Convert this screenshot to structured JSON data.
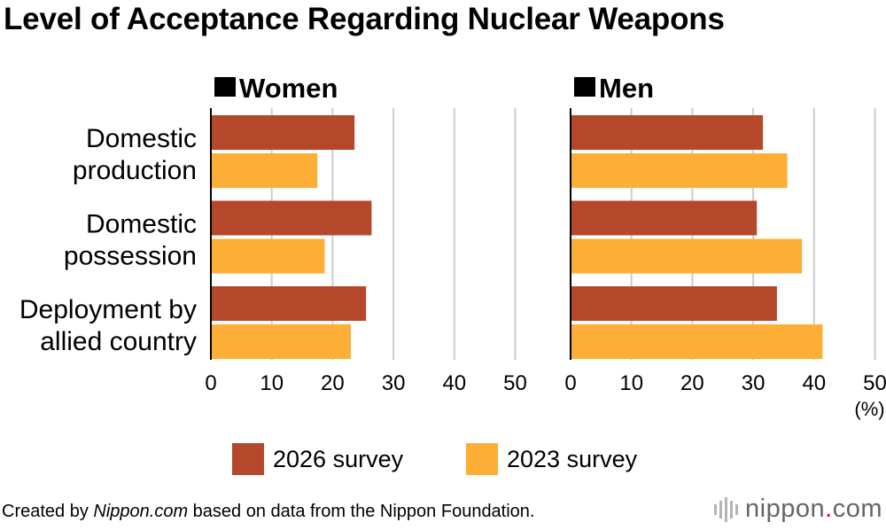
{
  "title": "Level of Acceptance Regarding Nuclear Weapons",
  "legend": {
    "items": [
      {
        "label": "2026 survey",
        "color": "#b5482a"
      },
      {
        "label": "2023 survey",
        "color": "#fdae37"
      }
    ]
  },
  "footer": {
    "prefix": "Created by ",
    "site": "Nippon.com",
    "suffix": " based on data from the Nippon Foundation."
  },
  "logo": {
    "word": "nippon",
    "dot": ".",
    "tld": "com",
    "icon": "barcode-marks-icon"
  },
  "chart_data": [
    {
      "type": "bar",
      "orientation": "horizontal",
      "title": "Women",
      "categories": [
        "Domestic production",
        "Domestic possession",
        "Deployment by allied country"
      ],
      "series": [
        {
          "name": "2026 survey",
          "color": "#b5482a",
          "values": [
            23.6,
            26.4,
            25.5
          ]
        },
        {
          "name": "2023 survey",
          "color": "#fdae37",
          "values": [
            17.5,
            18.7,
            23.0
          ]
        }
      ],
      "xlim": [
        0,
        50
      ],
      "ticks": [
        0,
        10,
        20,
        30,
        40,
        50
      ],
      "grid": true,
      "unit": ""
    },
    {
      "type": "bar",
      "orientation": "horizontal",
      "title": "Men",
      "categories": [
        "Domestic production",
        "Domestic possession",
        "Deployment by allied country"
      ],
      "series": [
        {
          "name": "2026 survey",
          "color": "#b5482a",
          "values": [
            31.6,
            30.6,
            33.9
          ]
        },
        {
          "name": "2023 survey",
          "color": "#fdae37",
          "values": [
            35.6,
            38.0,
            41.4
          ]
        }
      ],
      "xlim": [
        0,
        50
      ],
      "ticks": [
        0,
        10,
        20,
        30,
        40,
        50
      ],
      "grid": true,
      "unit": "(%)"
    }
  ],
  "category_labels": [
    [
      "Domestic",
      "production"
    ],
    [
      "Domestic",
      "possession"
    ],
    [
      "Deployment by",
      "allied country"
    ]
  ]
}
